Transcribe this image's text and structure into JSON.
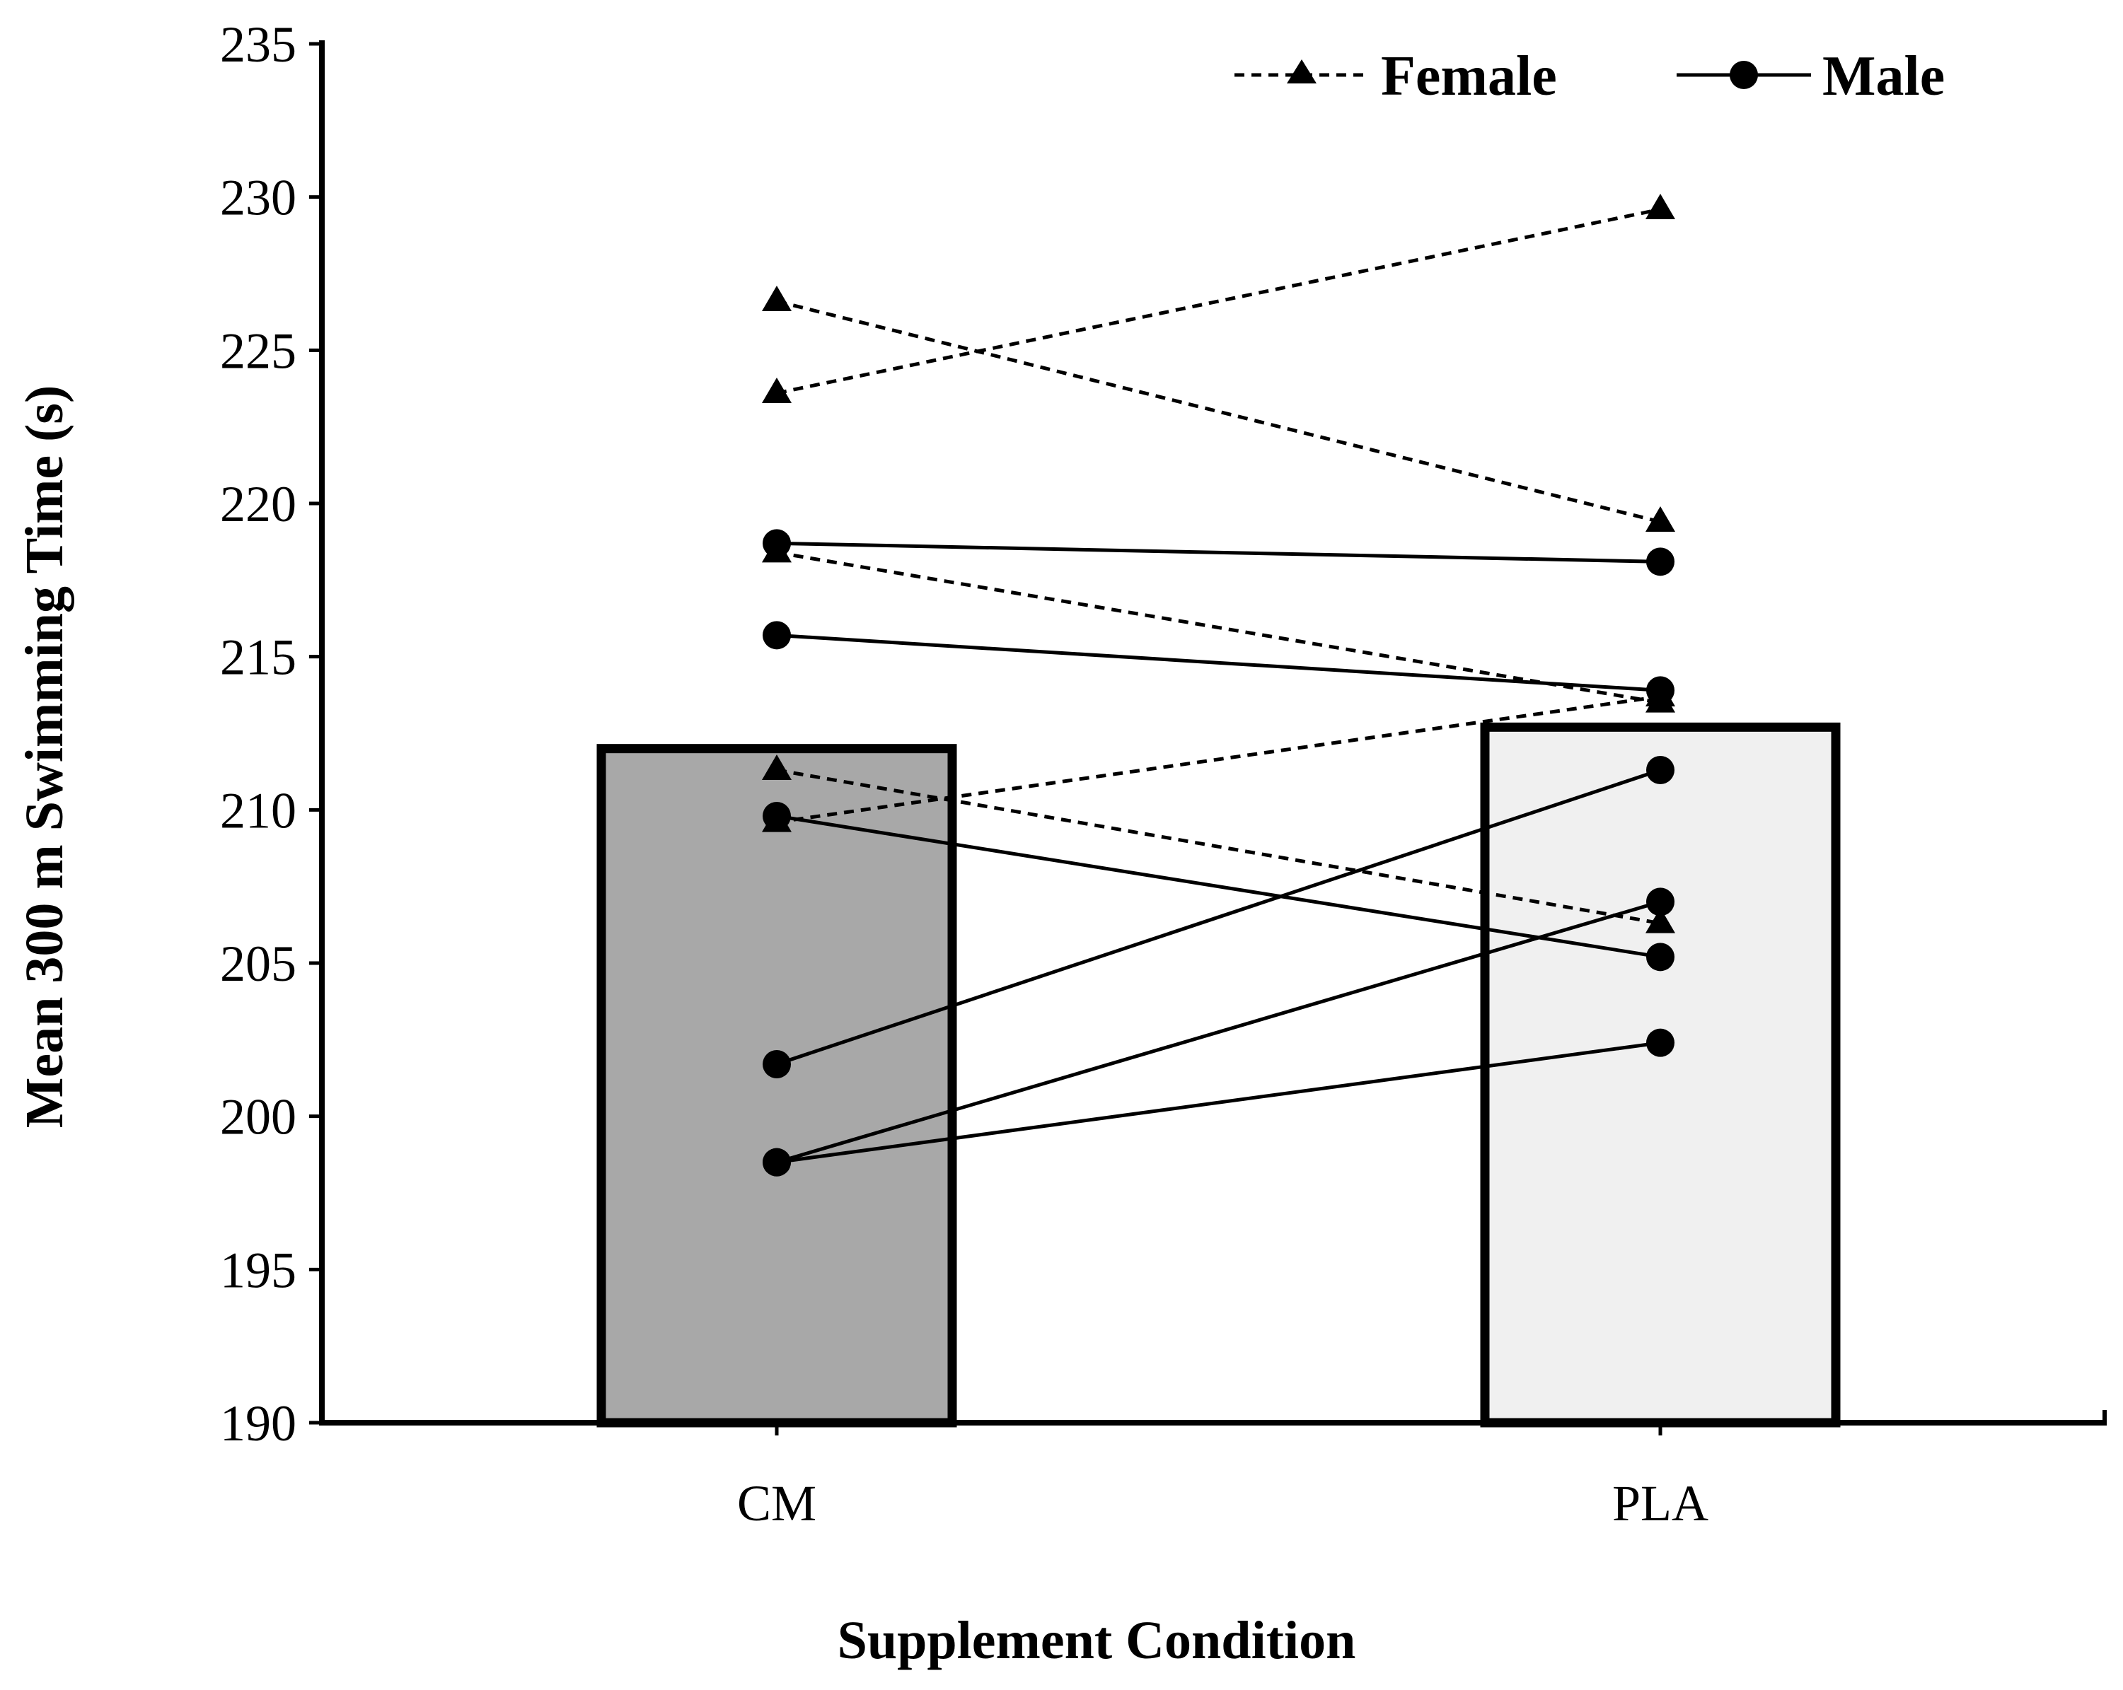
{
  "chart_data": {
    "type": "bar",
    "title": "",
    "xlabel": "Supplement Condition",
    "ylabel": "Mean 300 m Swimming Time (s)",
    "ylim": [
      190,
      235
    ],
    "yticks": [
      190,
      195,
      200,
      205,
      210,
      215,
      220,
      225,
      230,
      235
    ],
    "categories": [
      "CM",
      "PLA"
    ],
    "bars": [
      {
        "category": "CM",
        "value": 212.0,
        "fill": "#a8a8a8"
      },
      {
        "category": "PLA",
        "value": 212.7,
        "fill": "#f0f0f0"
      }
    ],
    "legend": {
      "placement": "top-right",
      "entries": [
        {
          "label": "Female",
          "marker": "triangle",
          "line": "dashed"
        },
        {
          "label": "Male",
          "marker": "circle",
          "line": "solid"
        }
      ]
    },
    "series": [
      {
        "group": "Female",
        "values": [
          226.6,
          219.4
        ]
      },
      {
        "group": "Female",
        "values": [
          223.6,
          229.6
        ]
      },
      {
        "group": "Female",
        "values": [
          218.4,
          213.5
        ]
      },
      {
        "group": "Female",
        "values": [
          211.3,
          206.3
        ]
      },
      {
        "group": "Female",
        "values": [
          209.6,
          213.7
        ]
      },
      {
        "group": "Male",
        "values": [
          218.7,
          218.1
        ]
      },
      {
        "group": "Male",
        "values": [
          215.7,
          213.9
        ]
      },
      {
        "group": "Male",
        "values": [
          209.8,
          205.2
        ]
      },
      {
        "group": "Male",
        "values": [
          201.7,
          211.3
        ]
      },
      {
        "group": "Male",
        "values": [
          198.5,
          207.0
        ]
      },
      {
        "group": "Male",
        "values": [
          198.5,
          202.4
        ]
      }
    ]
  }
}
